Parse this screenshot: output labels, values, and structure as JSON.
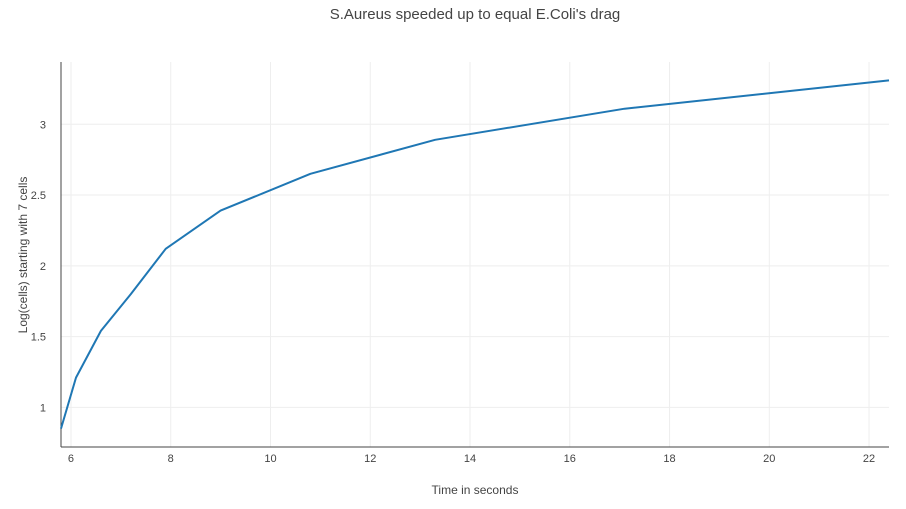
{
  "chart_data": {
    "type": "line",
    "title": "S.Aureus speeded up to equal E.Coli's drag",
    "xlabel": "Time in seconds",
    "ylabel": "Log(cells) starting with 7 cells",
    "xlim": [
      5.8,
      22.4
    ],
    "ylim": [
      0.72,
      3.44
    ],
    "x_ticks": [
      6,
      8,
      10,
      12,
      14,
      16,
      18,
      20,
      22
    ],
    "y_ticks": [
      1,
      1.5,
      2,
      2.5,
      3
    ],
    "grid": true,
    "legend": "none",
    "series": [
      {
        "color": "#1f77b4",
        "points": [
          {
            "x": 5.8,
            "y": 0.85
          },
          {
            "x": 6.1,
            "y": 1.21
          },
          {
            "x": 6.6,
            "y": 1.54
          },
          {
            "x": 7.2,
            "y": 1.8
          },
          {
            "x": 7.9,
            "y": 2.12
          },
          {
            "x": 9.0,
            "y": 2.39
          },
          {
            "x": 10.8,
            "y": 2.65
          },
          {
            "x": 13.3,
            "y": 2.89
          },
          {
            "x": 17.1,
            "y": 3.11
          },
          {
            "x": 22.4,
            "y": 3.31
          }
        ]
      }
    ]
  }
}
